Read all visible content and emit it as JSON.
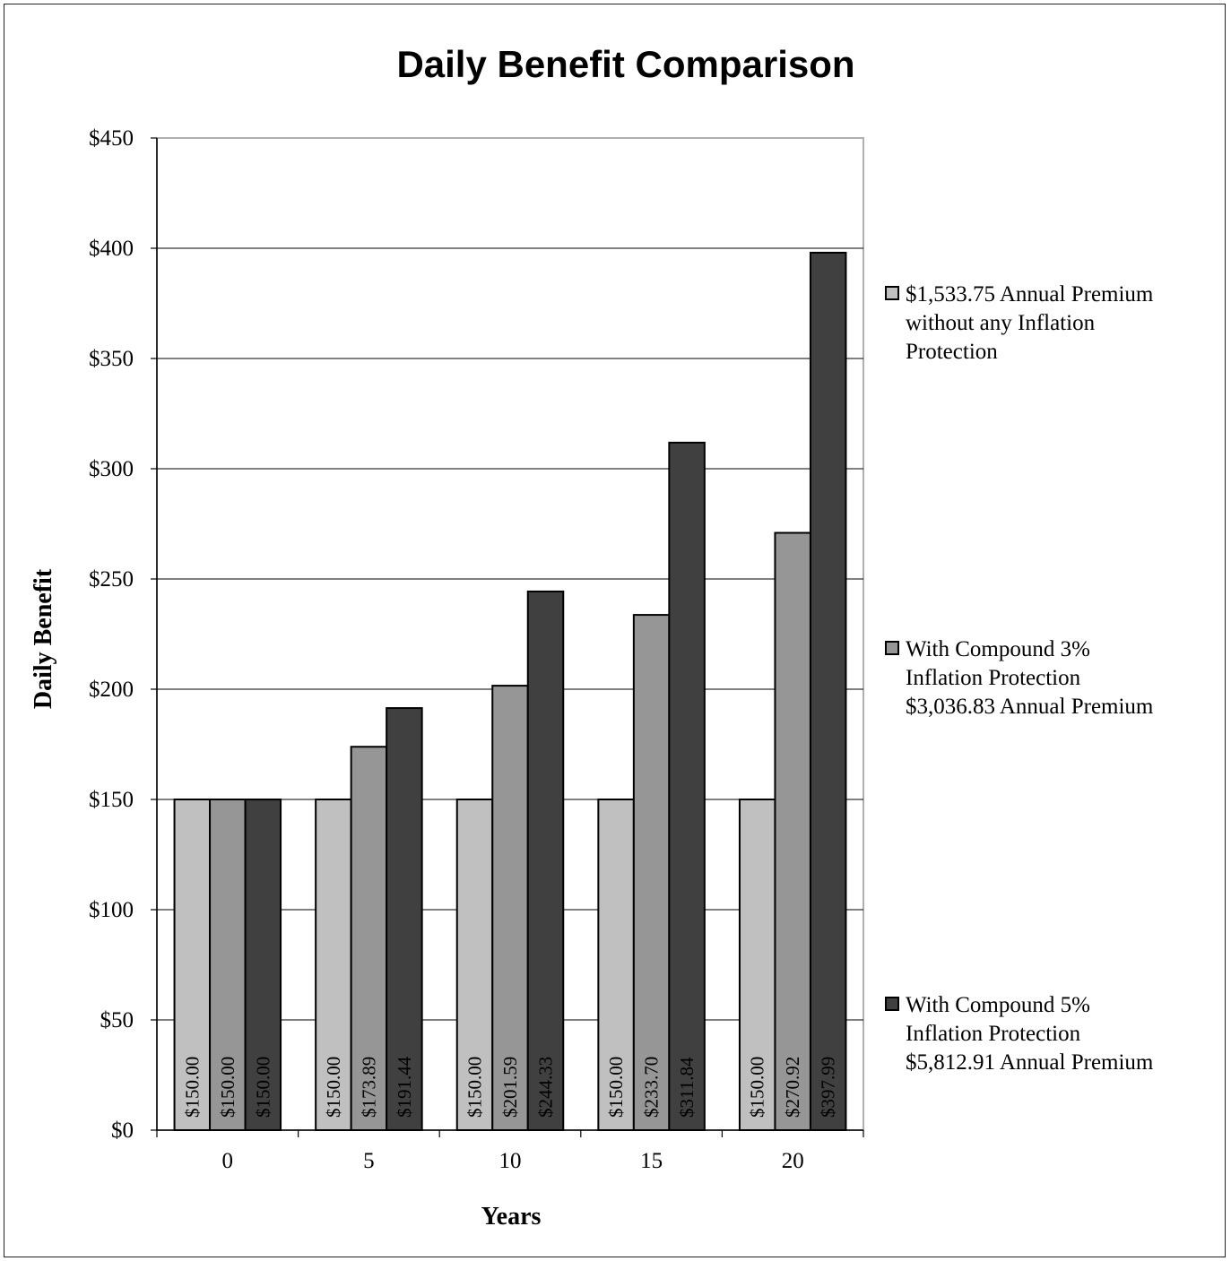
{
  "chart_data": {
    "type": "bar",
    "title": "Daily Benefit Comparison",
    "xlabel": "Years",
    "ylabel": "Daily Benefit",
    "categories": [
      "0",
      "5",
      "10",
      "15",
      "20"
    ],
    "ylim": [
      0,
      450
    ],
    "yticks": [
      0,
      50,
      100,
      150,
      200,
      250,
      300,
      350,
      400,
      450
    ],
    "ytick_labels": [
      "$0",
      "$50",
      "$100",
      "$150",
      "$200",
      "$250",
      "$300",
      "$350",
      "$400",
      "$450"
    ],
    "grid": true,
    "legend_position": "right",
    "series": [
      {
        "name": "$1,533.75 Annual Premium without any Inflation Protection",
        "legend_lines": [
          "$1,533.75 Annual Premium",
          "without any Inflation",
          "Protection"
        ],
        "color": "#c0c0c0",
        "values": [
          150.0,
          150.0,
          150.0,
          150.0,
          150.0
        ],
        "labels": [
          "$150.00",
          "$150.00",
          "$150.00",
          "$150.00",
          "$150.00"
        ]
      },
      {
        "name": "With Compound 3% Inflation Protection $3,036.83 Annual Premium",
        "legend_lines": [
          "With Compound 3%",
          "Inflation Protection",
          "$3,036.83 Annual Premium"
        ],
        "color": "#969696",
        "values": [
          150.0,
          173.89,
          201.59,
          233.7,
          270.92
        ],
        "labels": [
          "$150.00",
          "$173.89",
          "$201.59",
          "$233.70",
          "$270.92"
        ]
      },
      {
        "name": "With Compound 5% Inflation Protection $5,812.91 Annual Premium",
        "legend_lines": [
          "With Compound 5%",
          "Inflation Protection",
          "$5,812.91 Annual Premium"
        ],
        "color": "#404040",
        "values": [
          150.0,
          191.44,
          244.33,
          311.84,
          397.99
        ],
        "labels": [
          "$150.00",
          "$191.44",
          "$244.33",
          "$311.84",
          "$397.99"
        ]
      }
    ]
  }
}
